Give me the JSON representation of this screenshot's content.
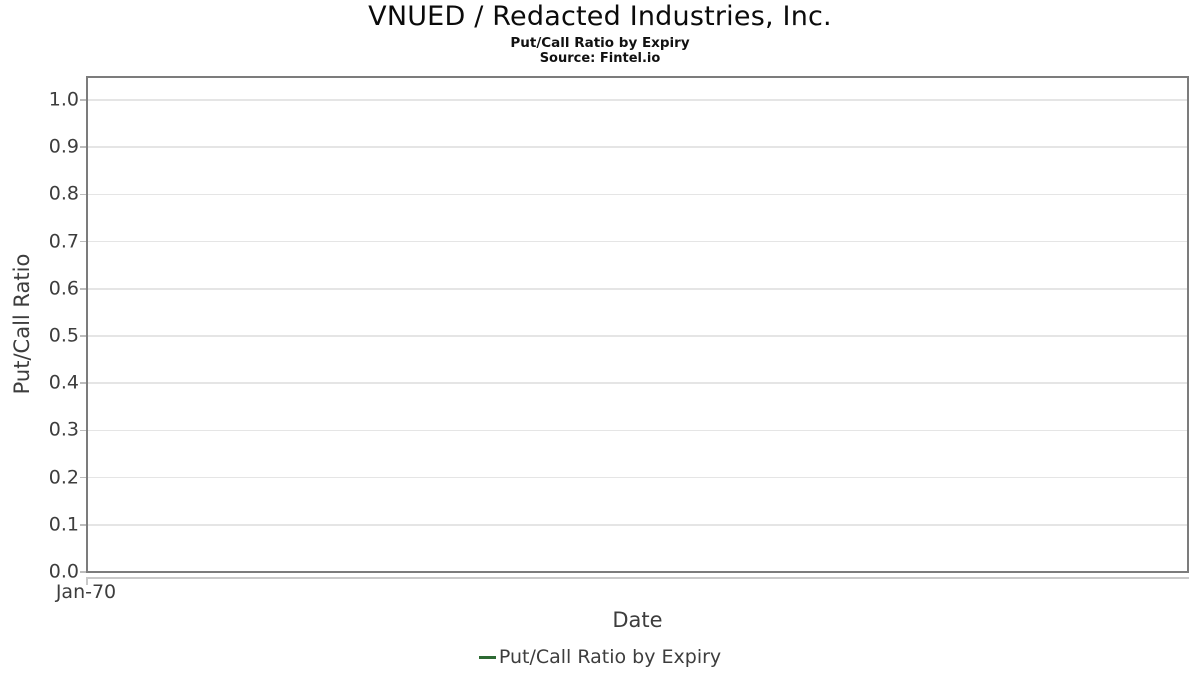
{
  "header": {
    "title": "VNUED / Redacted Industries, Inc.",
    "subtitle": "Put/Call Ratio by Expiry",
    "source": "Source: Fintel.io"
  },
  "chart": {
    "ylabel": "Put/Call Ratio",
    "xlabel": "Date",
    "y_ticks": [
      "1.0",
      "0.9",
      "0.8",
      "0.7",
      "0.6",
      "0.5",
      "0.4",
      "0.3",
      "0.2",
      "0.1",
      "0.0"
    ],
    "x_ticks": [
      "Jan-70"
    ],
    "legend": {
      "label": "Put/Call Ratio by Expiry",
      "marker_color": "#2d6a33"
    },
    "colors": {
      "plot_border": "#7c7c7c",
      "gridline": "#e5e5e5",
      "axis_line": "#c9c9c9",
      "axis_text": "#3d3d3d",
      "title_text": "#0b0b0b"
    }
  },
  "chart_data": {
    "type": "line",
    "title": "VNUED / Redacted Industries, Inc.",
    "subtitle": "Put/Call Ratio by Expiry",
    "source": "Source: Fintel.io",
    "xlabel": "Date",
    "ylabel": "Put/Call Ratio",
    "x": [],
    "series": [
      {
        "name": "Put/Call Ratio by Expiry",
        "color": "#2d6a33",
        "values": []
      }
    ],
    "ylim": [
      0.0,
      1.05
    ],
    "y_tick_values": [
      1.0,
      0.9,
      0.8,
      0.7,
      0.6,
      0.5,
      0.4,
      0.3,
      0.2,
      0.1,
      0.0
    ],
    "x_tick_labels": [
      "Jan-70"
    ],
    "grid": "horizontal",
    "legend_position": "bottom-center"
  }
}
